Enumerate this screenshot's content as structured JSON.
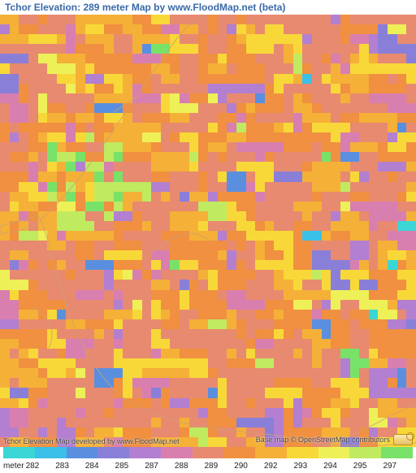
{
  "title": "Tchor Elevation: 289 meter Map by www.FloodMap.net (beta)",
  "grid": {
    "cols": 44,
    "rows": 44,
    "seed": 137
  },
  "palette": {
    "steps": [
      {
        "value": 282,
        "color": "#3bd6d6"
      },
      {
        "value": 283,
        "color": "#3bc0e8"
      },
      {
        "value": 284,
        "color": "#5a8fe0"
      },
      {
        "value": 285,
        "color": "#8a7fd8"
      },
      {
        "value": 287,
        "color": "#b37fd0"
      },
      {
        "value": 288,
        "color": "#d87fb0"
      },
      {
        "value": 289,
        "color": "#e88a70"
      },
      {
        "value": 290,
        "color": "#f09040"
      },
      {
        "value": 292,
        "color": "#f5b038"
      },
      {
        "value": 293,
        "color": "#f8d838"
      },
      {
        "value": 294,
        "color": "#eef058"
      },
      {
        "value": 295,
        "color": "#c0ea60"
      },
      {
        "value": 297,
        "color": "#78e268"
      }
    ]
  },
  "cell_weights": [
    0.002,
    0.004,
    0.01,
    0.025,
    0.05,
    0.05,
    0.32,
    0.22,
    0.16,
    0.12,
    0.02,
    0.015,
    0.004
  ],
  "roads": {
    "stroke": "#d0a070",
    "width": 1.2,
    "paths": [
      "M0,260 L40,250 L45,245 L50,252 L40,262 L0,270 Z",
      "M50,252 C110,200 150,120 210,40 C230,10 250,0 260,0",
      "M50,252 C70,300 80,410 150,470 C230,525 330,505 400,530",
      "M400,530 C440,520 480,490 512,480",
      "M400,530 L470,530 L512,527",
      "M180,300 C210,270 240,260 260,280",
      "M140,120 L170,100",
      "M40,360 C60,370 70,390 60,410"
    ]
  },
  "footer": {
    "left": "Tchor Elevation Map developed by www.FloodMap.net",
    "right": "Base map © OpenStreetMap contributors"
  },
  "legend": {
    "unit": "meter"
  }
}
